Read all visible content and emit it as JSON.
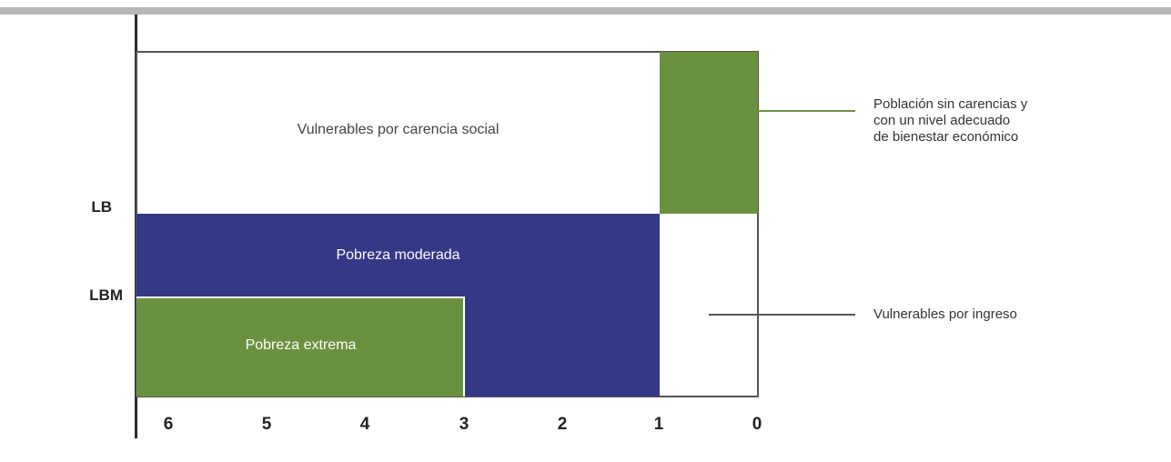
{
  "diagram": {
    "regions": {
      "vulnerable_social": "Vulnerables por carencia social",
      "moderate_poverty": "Pobreza moderada",
      "extreme_poverty": "Pobreza extrema"
    },
    "y_labels": {
      "lb": "LB",
      "lbm": "LBM"
    },
    "x_ticks": [
      "6",
      "5",
      "4",
      "3",
      "2",
      "1",
      "0"
    ],
    "annotations": {
      "no_deficiencies": [
        "Población sin carencias y",
        "con un nivel adecuado",
        "de bienestar económico"
      ],
      "vulnerable_income": "Vulnerables por ingreso"
    },
    "colors": {
      "green": "#6a9140",
      "blue": "#333887",
      "bar": "#b7b7b7"
    }
  }
}
